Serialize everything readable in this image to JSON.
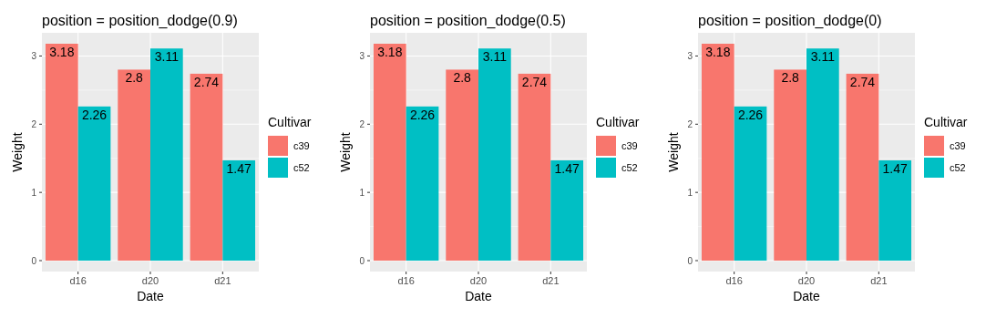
{
  "chart_data": [
    {
      "type": "bar",
      "title": "position = position_dodge(0.9)",
      "xlabel": "Date",
      "ylabel": "Weight",
      "legend_title": "Cultivar",
      "categories": [
        "d16",
        "d20",
        "d21"
      ],
      "series": [
        {
          "name": "c39",
          "color": "#f8766d",
          "values": [
            3.18,
            2.8,
            2.74
          ]
        },
        {
          "name": "c52",
          "color": "#00bfc4",
          "values": [
            2.26,
            3.11,
            1.47
          ]
        }
      ],
      "ylim": [
        -0.16,
        3.34
      ],
      "yticks": [
        0,
        1,
        2,
        3
      ],
      "grid": true,
      "legend": "right",
      "data_labels": true
    },
    {
      "type": "bar",
      "title": "position = position_dodge(0.5)",
      "xlabel": "Date",
      "ylabel": "Weight",
      "legend_title": "Cultivar",
      "categories": [
        "d16",
        "d20",
        "d21"
      ],
      "series": [
        {
          "name": "c39",
          "color": "#f8766d",
          "values": [
            3.18,
            2.8,
            2.74
          ]
        },
        {
          "name": "c52",
          "color": "#00bfc4",
          "values": [
            2.26,
            3.11,
            1.47
          ]
        }
      ],
      "ylim": [
        -0.16,
        3.34
      ],
      "yticks": [
        0,
        1,
        2,
        3
      ],
      "grid": true,
      "legend": "right",
      "data_labels": true
    },
    {
      "type": "bar",
      "title": "position = position_dodge(0)",
      "xlabel": "Date",
      "ylabel": "Weight",
      "legend_title": "Cultivar",
      "categories": [
        "d16",
        "d20",
        "d21"
      ],
      "series": [
        {
          "name": "c39",
          "color": "#f8766d",
          "values": [
            3.18,
            2.8,
            2.74
          ]
        },
        {
          "name": "c52",
          "color": "#00bfc4",
          "values": [
            2.26,
            3.11,
            1.47
          ]
        }
      ],
      "ylim": [
        -0.16,
        3.34
      ],
      "yticks": [
        0,
        1,
        2,
        3
      ],
      "grid": true,
      "legend": "right",
      "data_labels": true
    }
  ]
}
